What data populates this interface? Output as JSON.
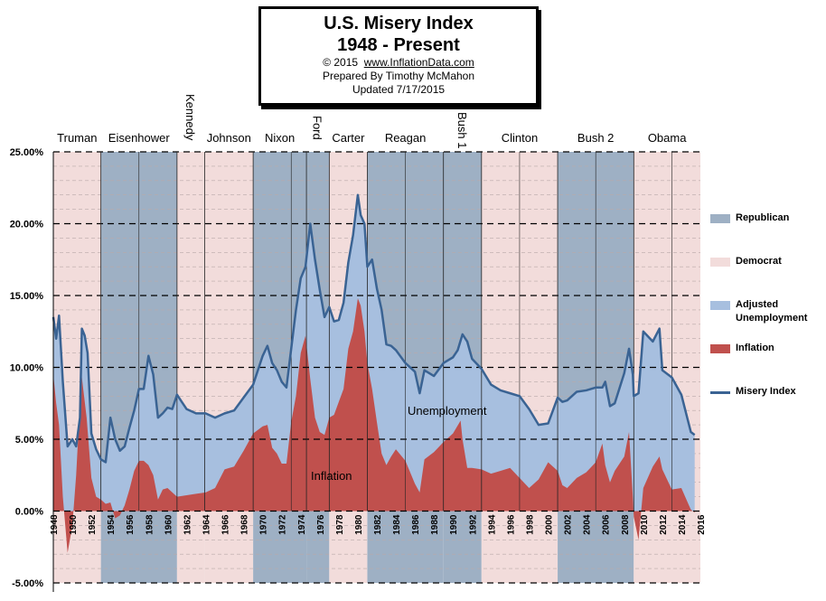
{
  "title_box": {
    "line1": "U.S. Misery Index",
    "line2": "1948 - Present",
    "copyright": "© 2015",
    "website": "www.InflationData.com",
    "prepared_by": "Prepared  By Timothy McMahon",
    "updated": "Updated  7/17/2015"
  },
  "legend": [
    {
      "label": "Republican",
      "color": "#9eb0c4",
      "kind": "swatch"
    },
    {
      "label": "Democrat",
      "color": "#f2dcdb",
      "kind": "swatch"
    },
    {
      "label": "Adjusted Unemployment",
      "color": "#a7bfdf",
      "kind": "swatch"
    },
    {
      "label": "Inflation",
      "color": "#c0504d",
      "kind": "swatch"
    },
    {
      "label": "Misery Index",
      "color": "#3a6393",
      "kind": "line"
    }
  ],
  "colors": {
    "republican": "#9eb0c4",
    "democrat": "#f2dcdb",
    "unemployment": "#a7bfdf",
    "inflation": "#c0504d",
    "misery": "#3a6393"
  },
  "annotations": {
    "unemployment": "Unemployment",
    "inflation": "Inflation"
  },
  "chart_data": {
    "type": "area",
    "title": "U.S. Misery Index",
    "subtitle": "1948 - Present",
    "xlim": [
      1948,
      2016
    ],
    "ylim": [
      -5,
      25
    ],
    "y_ticks": [
      "-5.00%",
      "0.00%",
      "5.00%",
      "10.00%",
      "15.00%",
      "20.00%",
      "25.00%"
    ],
    "y_tick_values": [
      -5,
      0,
      5,
      10,
      15,
      20,
      25
    ],
    "x_ticks": [
      "1948",
      "1950",
      "1952",
      "1954",
      "1956",
      "1958",
      "1960",
      "1962",
      "1964",
      "1966",
      "1968",
      "1970",
      "1972",
      "1974",
      "1976",
      "1978",
      "1980",
      "1982",
      "1984",
      "1986",
      "1988",
      "1990",
      "1992",
      "1994",
      "1996",
      "1998",
      "2000",
      "2002",
      "2004",
      "2006",
      "2008",
      "2010",
      "2012",
      "2014",
      "2016"
    ],
    "presidents": [
      {
        "name": "Truman",
        "start": 1948.0,
        "end": 1953.0,
        "party": "Democrat",
        "vertical": false
      },
      {
        "name": "Eisenhower",
        "start": 1953.0,
        "end": 1961.0,
        "party": "Republican",
        "vertical": false
      },
      {
        "name": "Kennedy",
        "start": 1961.0,
        "end": 1963.9,
        "party": "Democrat",
        "vertical": true
      },
      {
        "name": "Johnson",
        "start": 1963.9,
        "end": 1969.0,
        "party": "Democrat",
        "vertical": false
      },
      {
        "name": "Nixon",
        "start": 1969.0,
        "end": 1974.6,
        "party": "Republican",
        "vertical": false
      },
      {
        "name": "Ford",
        "start": 1974.6,
        "end": 1977.0,
        "party": "Republican",
        "vertical": true
      },
      {
        "name": "Carter",
        "start": 1977.0,
        "end": 1981.0,
        "party": "Democrat",
        "vertical": false
      },
      {
        "name": "Reagan",
        "start": 1981.0,
        "end": 1989.0,
        "party": "Republican",
        "vertical": false
      },
      {
        "name": "Bush 1",
        "start": 1989.0,
        "end": 1993.0,
        "party": "Republican",
        "vertical": true
      },
      {
        "name": "Clinton",
        "start": 1993.0,
        "end": 2001.0,
        "party": "Democrat",
        "vertical": false
      },
      {
        "name": "Bush 2",
        "start": 2001.0,
        "end": 2009.0,
        "party": "Republican",
        "vertical": false
      },
      {
        "name": "Obama",
        "start": 2009.0,
        "end": 2016.0,
        "party": "Democrat",
        "vertical": false
      }
    ],
    "series": [
      {
        "name": "Inflation",
        "x": [
          1948,
          1948.3,
          1948.6,
          1949,
          1949.5,
          1950,
          1950.4,
          1950.8,
          1951,
          1951.5,
          1952,
          1952.5,
          1953,
          1953.5,
          1954,
          1954.5,
          1955,
          1955.5,
          1956,
          1956.5,
          1957,
          1957.5,
          1958,
          1958.5,
          1959,
          1959.5,
          1960,
          1961,
          1962,
          1963,
          1964,
          1965,
          1966,
          1967,
          1968,
          1969,
          1970,
          1970.5,
          1971,
          1971.5,
          1972,
          1972.5,
          1973,
          1973.5,
          1974,
          1974.5,
          1975,
          1975.5,
          1976,
          1976.5,
          1977,
          1977.5,
          1978,
          1978.5,
          1979,
          1979.5,
          1980,
          1980.3,
          1980.7,
          1981,
          1981.5,
          1982,
          1982.5,
          1983,
          1983.5,
          1984,
          1985,
          1986,
          1986.5,
          1987,
          1988,
          1989,
          1990,
          1990.8,
          1991,
          1991.5,
          1992,
          1993,
          1994,
          1995,
          1996,
          1997,
          1998,
          1999,
          2000,
          2001,
          2001.5,
          2002,
          2003,
          2004,
          2005,
          2005.7,
          2006,
          2006.5,
          2007,
          2008,
          2008.5,
          2008.9,
          2009,
          2009.5,
          2010,
          2011,
          2011.7,
          2012,
          2013,
          2014,
          2015,
          2015.4
        ],
        "values": [
          9.5,
          7.5,
          6.0,
          1.0,
          -2.9,
          -1.0,
          2.5,
          7.5,
          9.3,
          6.5,
          2.3,
          1.0,
          0.8,
          0.5,
          0.6,
          -0.5,
          -0.3,
          0.4,
          1.5,
          2.8,
          3.5,
          3.5,
          3.2,
          2.5,
          0.8,
          1.5,
          1.6,
          1.0,
          1.1,
          1.2,
          1.3,
          1.6,
          2.9,
          3.1,
          4.2,
          5.4,
          5.9,
          6.0,
          4.4,
          4.0,
          3.3,
          3.3,
          6.2,
          8.0,
          11.0,
          12.2,
          9.2,
          6.5,
          5.5,
          5.3,
          6.5,
          6.7,
          7.6,
          8.5,
          11.3,
          12.5,
          14.8,
          14.3,
          12.5,
          10.3,
          8.5,
          6.2,
          4.0,
          3.2,
          3.8,
          4.3,
          3.5,
          1.9,
          1.3,
          3.6,
          4.1,
          4.8,
          5.4,
          6.3,
          5.0,
          3.0,
          3.0,
          2.9,
          2.6,
          2.8,
          3.0,
          2.3,
          1.6,
          2.2,
          3.4,
          2.8,
          1.8,
          1.6,
          2.3,
          2.7,
          3.4,
          4.7,
          3.2,
          2.0,
          2.8,
          3.8,
          5.5,
          1.0,
          -0.4,
          -2.0,
          1.6,
          3.1,
          3.8,
          2.9,
          1.5,
          1.6,
          0.1,
          -0.1
        ]
      },
      {
        "name": "Misery Index",
        "x": [
          1948,
          1948.3,
          1948.6,
          1949,
          1949.5,
          1950,
          1950.4,
          1950.8,
          1951,
          1951.3,
          1951.6,
          1952,
          1952.5,
          1953,
          1953.5,
          1954,
          1954.5,
          1955,
          1955.5,
          1956,
          1956.5,
          1957,
          1957.5,
          1958,
          1958.5,
          1959,
          1959.5,
          1960,
          1960.5,
          1961,
          1961.5,
          1962,
          1963,
          1964,
          1965,
          1966,
          1967,
          1968,
          1969,
          1970,
          1970.5,
          1971,
          1971.5,
          1972,
          1972.5,
          1973,
          1973.5,
          1974,
          1974.5,
          1975,
          1975.5,
          1976,
          1976.5,
          1977,
          1977.5,
          1978,
          1978.5,
          1979,
          1979.5,
          1980,
          1980.3,
          1980.7,
          1981,
          1981.5,
          1982,
          1982.5,
          1983,
          1983.5,
          1984,
          1985,
          1986,
          1986.5,
          1987,
          1988,
          1989,
          1990,
          1990.5,
          1991,
          1991.5,
          1992,
          1993,
          1994,
          1995,
          1996,
          1997,
          1998,
          1999,
          2000,
          2001,
          2001.5,
          2002,
          2003,
          2004,
          2005,
          2005.7,
          2006,
          2006.5,
          2007,
          2008,
          2008.5,
          2008.9,
          2009,
          2009.5,
          2010,
          2011,
          2011.7,
          2012,
          2013,
          2014,
          2015,
          2015.4
        ],
        "values": [
          13.5,
          12.0,
          13.6,
          9.0,
          4.5,
          5.0,
          4.5,
          6.5,
          12.7,
          12.2,
          11.0,
          5.4,
          4.3,
          3.6,
          3.4,
          6.5,
          5.0,
          4.2,
          4.5,
          5.8,
          7.0,
          8.5,
          8.5,
          10.8,
          9.5,
          6.5,
          6.8,
          7.2,
          7.1,
          8.1,
          7.6,
          7.1,
          6.8,
          6.8,
          6.5,
          6.8,
          7.0,
          7.9,
          8.8,
          10.8,
          11.5,
          10.3,
          9.8,
          9.0,
          8.6,
          11.3,
          14.0,
          16.2,
          17.0,
          20.0,
          17.5,
          15.4,
          13.5,
          14.2,
          13.2,
          13.3,
          14.5,
          17.3,
          19.2,
          22.0,
          20.6,
          20.0,
          17.0,
          17.5,
          15.5,
          14.0,
          11.6,
          11.5,
          11.2,
          10.3,
          9.7,
          8.2,
          9.8,
          9.4,
          10.3,
          10.7,
          11.2,
          12.3,
          11.8,
          10.6,
          9.9,
          8.8,
          8.4,
          8.2,
          8.0,
          7.1,
          6.0,
          6.1,
          7.9,
          7.6,
          7.7,
          8.3,
          8.4,
          8.6,
          8.6,
          9.0,
          7.3,
          7.5,
          9.6,
          11.3,
          9.5,
          8.0,
          8.2,
          12.5,
          11.8,
          12.7,
          9.8,
          9.3,
          8.1,
          5.5,
          5.3
        ]
      }
    ]
  }
}
